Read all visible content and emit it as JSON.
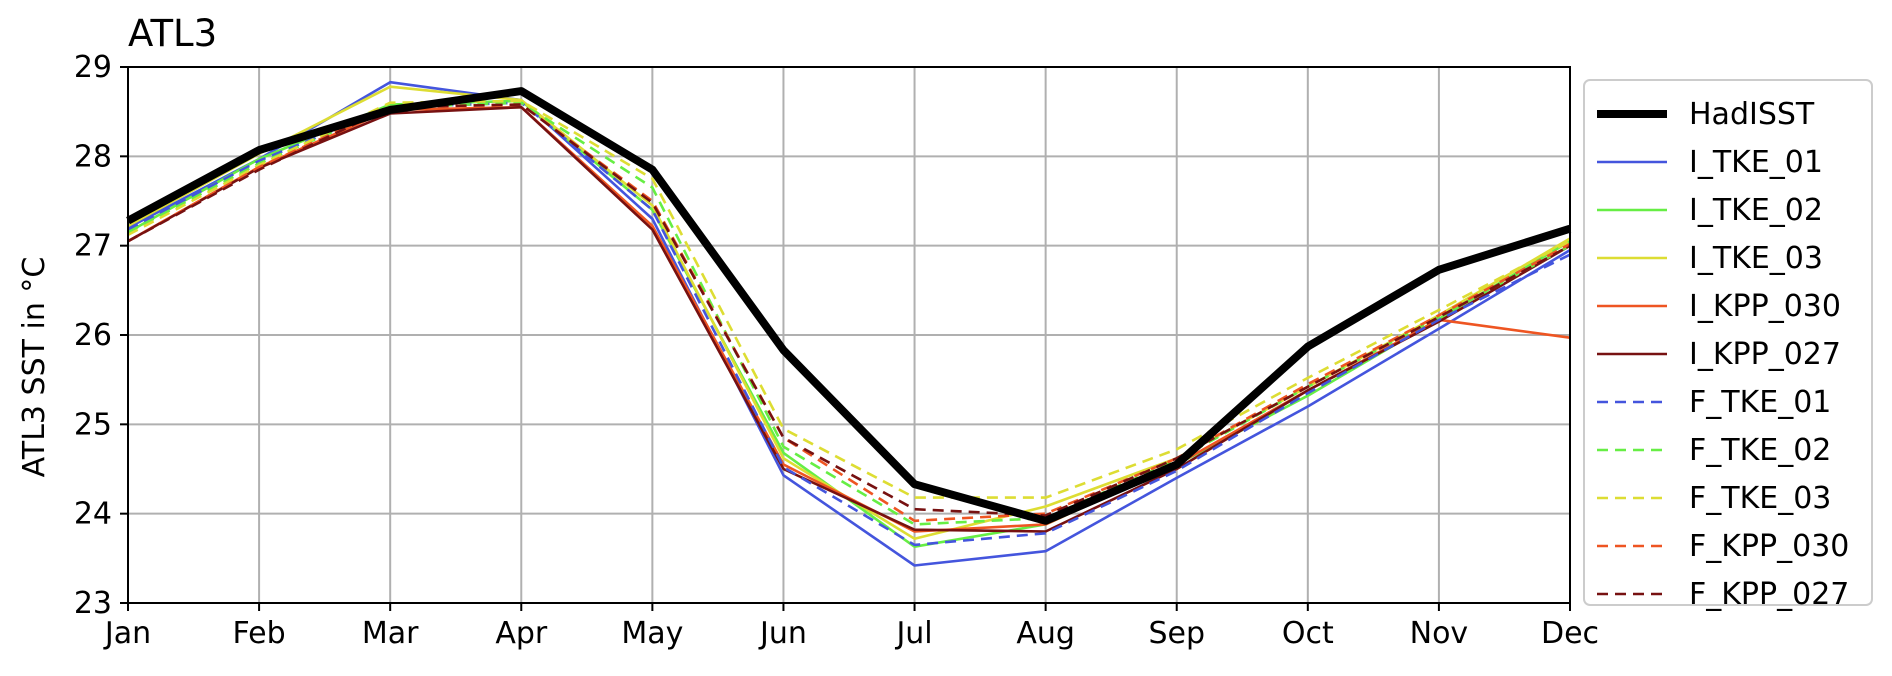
{
  "chart_data": {
    "type": "line",
    "title": "ATL3",
    "xlabel": "",
    "ylabel": "ATL3 SST in °C",
    "ylim": [
      23,
      29
    ],
    "yticks": [
      23,
      24,
      25,
      26,
      27,
      28,
      29
    ],
    "categories": [
      "Jan",
      "Feb",
      "Mar",
      "Apr",
      "May",
      "Jun",
      "Jul",
      "Aug",
      "Sep",
      "Oct",
      "Nov",
      "Dec"
    ],
    "grid": true,
    "legend_position": "right, outside plot",
    "series": [
      {
        "name": "HadISST",
        "color": "#000000",
        "style": "solid",
        "width": "thick",
        "values": [
          27.28,
          28.07,
          28.52,
          28.73,
          27.85,
          25.83,
          24.33,
          23.92,
          24.55,
          25.87,
          26.73,
          27.19
        ]
      },
      {
        "name": "I_TKE_01",
        "color": "#4455dd",
        "style": "solid",
        "values": [
          27.2,
          27.97,
          28.83,
          28.63,
          27.3,
          24.43,
          23.42,
          23.58,
          24.4,
          25.2,
          26.07,
          26.95
        ]
      },
      {
        "name": "I_TKE_02",
        "color": "#66ee44",
        "style": "solid",
        "values": [
          27.15,
          27.97,
          28.58,
          28.62,
          27.4,
          24.68,
          23.63,
          23.88,
          24.55,
          25.32,
          26.18,
          27.05
        ]
      },
      {
        "name": "I_TKE_03",
        "color": "#dddd33",
        "style": "solid",
        "values": [
          27.22,
          28.03,
          28.78,
          28.63,
          27.45,
          24.62,
          23.72,
          24.08,
          24.62,
          25.42,
          26.22,
          27.08
        ]
      },
      {
        "name": "I_KPP_030",
        "color": "#ee5522",
        "style": "solid",
        "values": [
          27.05,
          27.88,
          28.52,
          28.55,
          27.22,
          24.55,
          23.8,
          23.88,
          24.55,
          25.38,
          26.17,
          25.97
        ]
      },
      {
        "name": "I_KPP_027",
        "color": "#771111",
        "style": "solid",
        "values": [
          27.05,
          27.87,
          28.48,
          28.55,
          27.18,
          24.5,
          23.82,
          23.8,
          24.5,
          25.38,
          26.15,
          27.0
        ]
      },
      {
        "name": "F_TKE_01",
        "color": "#4455dd",
        "style": "dashed",
        "values": [
          27.18,
          27.95,
          28.55,
          28.6,
          27.4,
          24.52,
          23.65,
          23.78,
          24.48,
          25.35,
          26.17,
          26.9
        ]
      },
      {
        "name": "F_TKE_02",
        "color": "#66ee44",
        "style": "dashed",
        "values": [
          27.15,
          27.92,
          28.55,
          28.6,
          27.65,
          24.75,
          23.88,
          23.95,
          24.6,
          25.42,
          26.2,
          27.0
        ]
      },
      {
        "name": "F_TKE_03",
        "color": "#dddd33",
        "style": "dashed",
        "values": [
          27.12,
          27.9,
          28.6,
          28.62,
          27.75,
          24.95,
          24.18,
          24.18,
          24.72,
          25.52,
          26.28,
          27.05
        ]
      },
      {
        "name": "F_KPP_030",
        "color": "#ee5522",
        "style": "dashed",
        "values": [
          27.05,
          27.88,
          28.55,
          28.58,
          27.5,
          24.85,
          23.92,
          24.0,
          24.62,
          25.45,
          26.22,
          27.02
        ]
      },
      {
        "name": "F_KPP_027",
        "color": "#771111",
        "style": "dashed",
        "values": [
          27.05,
          27.85,
          28.55,
          28.58,
          27.48,
          24.85,
          24.05,
          23.98,
          24.62,
          25.42,
          26.2,
          27.0
        ]
      }
    ]
  }
}
